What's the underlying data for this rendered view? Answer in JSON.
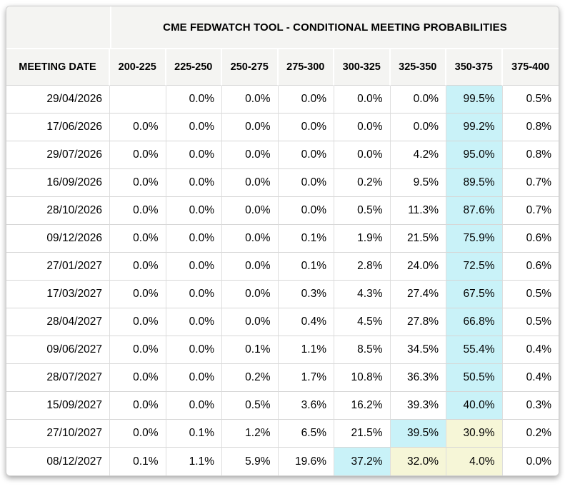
{
  "chart_data": {
    "type": "table",
    "title": "CME FEDWATCH TOOL - CONDITIONAL MEETING PROBABILITIES",
    "row_header_label": "MEETING DATE",
    "columns": [
      "200-225",
      "225-250",
      "250-275",
      "275-300",
      "300-325",
      "325-350",
      "350-375",
      "375-400"
    ],
    "rows": [
      {
        "date": "29/04/2026",
        "values": [
          "",
          "0.0%",
          "0.0%",
          "0.0%",
          "0.0%",
          "0.0%",
          "99.5%",
          "0.5%"
        ],
        "highlights": [
          "",
          "",
          "",
          "",
          "",
          "",
          "cyan",
          ""
        ]
      },
      {
        "date": "17/06/2026",
        "values": [
          "0.0%",
          "0.0%",
          "0.0%",
          "0.0%",
          "0.0%",
          "0.0%",
          "99.2%",
          "0.8%"
        ],
        "highlights": [
          "",
          "",
          "",
          "",
          "",
          "",
          "cyan",
          ""
        ]
      },
      {
        "date": "29/07/2026",
        "values": [
          "0.0%",
          "0.0%",
          "0.0%",
          "0.0%",
          "0.0%",
          "4.2%",
          "95.0%",
          "0.8%"
        ],
        "highlights": [
          "",
          "",
          "",
          "",
          "",
          "",
          "cyan",
          ""
        ]
      },
      {
        "date": "16/09/2026",
        "values": [
          "0.0%",
          "0.0%",
          "0.0%",
          "0.0%",
          "0.2%",
          "9.5%",
          "89.5%",
          "0.7%"
        ],
        "highlights": [
          "",
          "",
          "",
          "",
          "",
          "",
          "cyan",
          ""
        ]
      },
      {
        "date": "28/10/2026",
        "values": [
          "0.0%",
          "0.0%",
          "0.0%",
          "0.0%",
          "0.5%",
          "11.3%",
          "87.6%",
          "0.7%"
        ],
        "highlights": [
          "",
          "",
          "",
          "",
          "",
          "",
          "cyan",
          ""
        ]
      },
      {
        "date": "09/12/2026",
        "values": [
          "0.0%",
          "0.0%",
          "0.0%",
          "0.1%",
          "1.9%",
          "21.5%",
          "75.9%",
          "0.6%"
        ],
        "highlights": [
          "",
          "",
          "",
          "",
          "",
          "",
          "cyan",
          ""
        ]
      },
      {
        "date": "27/01/2027",
        "values": [
          "0.0%",
          "0.0%",
          "0.0%",
          "0.1%",
          "2.8%",
          "24.0%",
          "72.5%",
          "0.6%"
        ],
        "highlights": [
          "",
          "",
          "",
          "",
          "",
          "",
          "cyan",
          ""
        ]
      },
      {
        "date": "17/03/2027",
        "values": [
          "0.0%",
          "0.0%",
          "0.0%",
          "0.3%",
          "4.3%",
          "27.4%",
          "67.5%",
          "0.5%"
        ],
        "highlights": [
          "",
          "",
          "",
          "",
          "",
          "",
          "cyan",
          ""
        ]
      },
      {
        "date": "28/04/2027",
        "values": [
          "0.0%",
          "0.0%",
          "0.0%",
          "0.4%",
          "4.5%",
          "27.8%",
          "66.8%",
          "0.5%"
        ],
        "highlights": [
          "",
          "",
          "",
          "",
          "",
          "",
          "cyan",
          ""
        ]
      },
      {
        "date": "09/06/2027",
        "values": [
          "0.0%",
          "0.0%",
          "0.1%",
          "1.1%",
          "8.5%",
          "34.5%",
          "55.4%",
          "0.4%"
        ],
        "highlights": [
          "",
          "",
          "",
          "",
          "",
          "",
          "cyan",
          ""
        ]
      },
      {
        "date": "28/07/2027",
        "values": [
          "0.0%",
          "0.0%",
          "0.2%",
          "1.7%",
          "10.8%",
          "36.3%",
          "50.5%",
          "0.4%"
        ],
        "highlights": [
          "",
          "",
          "",
          "",
          "",
          "",
          "cyan",
          ""
        ]
      },
      {
        "date": "15/09/2027",
        "values": [
          "0.0%",
          "0.0%",
          "0.5%",
          "3.6%",
          "16.2%",
          "39.3%",
          "40.0%",
          "0.3%"
        ],
        "highlights": [
          "",
          "",
          "",
          "",
          "",
          "",
          "cyan",
          ""
        ]
      },
      {
        "date": "27/10/2027",
        "values": [
          "0.0%",
          "0.1%",
          "1.2%",
          "6.5%",
          "21.5%",
          "39.5%",
          "30.9%",
          "0.2%"
        ],
        "highlights": [
          "",
          "",
          "",
          "",
          "",
          "cyan",
          "yellow",
          ""
        ]
      },
      {
        "date": "08/12/2027",
        "values": [
          "0.1%",
          "1.1%",
          "5.9%",
          "19.6%",
          "37.2%",
          "32.0%",
          "4.0%",
          "0.0%"
        ],
        "highlights": [
          "",
          "",
          "",
          "",
          "cyan",
          "yellow",
          "yellow",
          ""
        ]
      }
    ],
    "colors": {
      "header_bg": "#f4f4f2",
      "cyan_highlight": "#c9f2f8",
      "yellow_highlight": "#f6f6d7",
      "gridline": "#d6d6d6",
      "text": "#000000"
    },
    "layout": {
      "grid": "on",
      "highlight_columns_note": ""
    }
  }
}
